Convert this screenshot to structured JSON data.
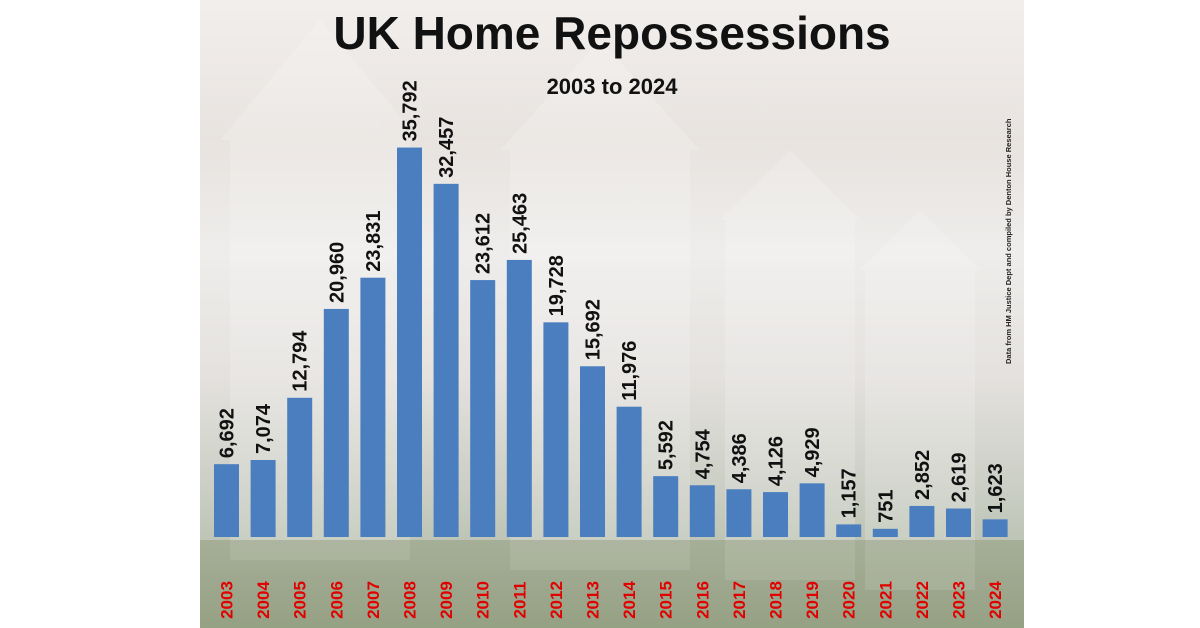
{
  "chart_data": {
    "type": "bar",
    "title": "UK Home Repossessions",
    "subtitle": "2003 to 2024",
    "source_note": "Data from HM Justice Dept and compiled by Denton House Research",
    "categories": [
      "2003",
      "2004",
      "2005",
      "2006",
      "2007",
      "2008",
      "2009",
      "2010",
      "2011",
      "2012",
      "2013",
      "2014",
      "2015",
      "2016",
      "2017",
      "2018",
      "2019",
      "2020",
      "2021",
      "2022",
      "2023",
      "2024"
    ],
    "values": [
      6692,
      7074,
      12794,
      20960,
      23831,
      35792,
      32457,
      23612,
      25463,
      19728,
      15692,
      11976,
      5592,
      4754,
      4386,
      4126,
      4929,
      1157,
      751,
      2852,
      2619,
      1623
    ],
    "value_labels": [
      "6,692",
      "7,074",
      "12,794",
      "20,960",
      "23,831",
      "35,792",
      "32,457",
      "23,612",
      "25,463",
      "19,728",
      "15,692",
      "11,976",
      "5,592",
      "4,754",
      "4,386",
      "4,126",
      "4,929",
      "1,157",
      "751",
      "2,852",
      "2,619",
      "1,623"
    ],
    "ylim": [
      0,
      42000
    ],
    "colors": {
      "bar": "#4a7ebf",
      "category_label": "#e00000",
      "value_label": "#111111"
    },
    "grid": false,
    "legend": "none"
  }
}
